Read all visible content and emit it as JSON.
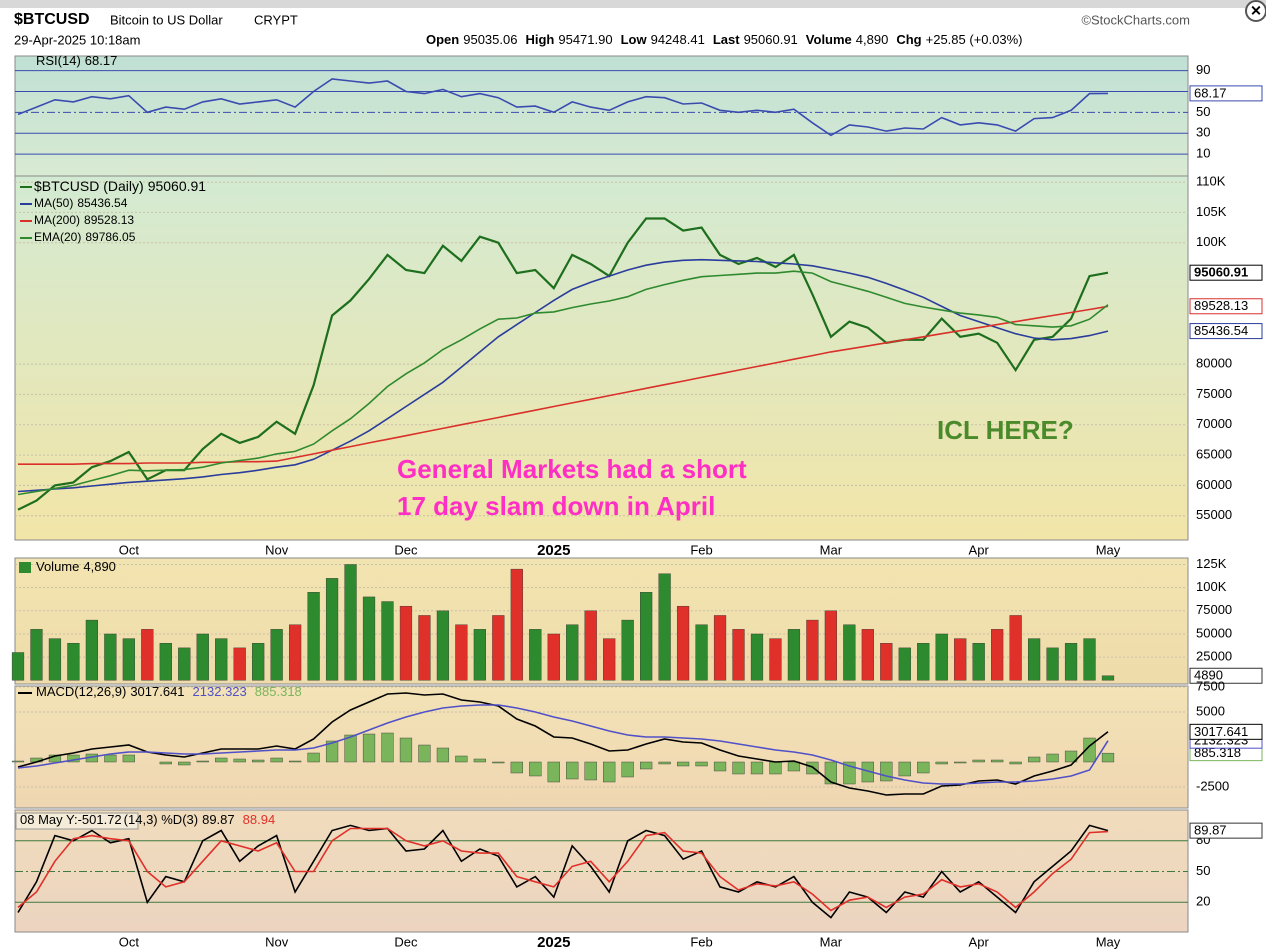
{
  "header": {
    "symbol": "$BTCUSD",
    "name": "Bitcoin to US Dollar",
    "exchange": "CRYPT",
    "date": "29-Apr-2025 10:18am",
    "source": "©StockCharts.com",
    "quote": [
      [
        "Open",
        "95035.06"
      ],
      [
        "High",
        "95471.90"
      ],
      [
        "Low",
        "94248.41"
      ],
      [
        "Last",
        "95060.91"
      ],
      [
        "Volume",
        "4,890"
      ],
      [
        "Chg",
        "+25.85 (+0.03%)"
      ]
    ]
  },
  "chart_data": [
    {
      "type": "line",
      "ylim": [
        -11,
        104
      ],
      "yticks": [
        10,
        30,
        50,
        70,
        90
      ],
      "grid": true,
      "series": [
        {
          "name": "RSI(14)",
          "color": "#3a4bb0",
          "values": [
            48,
            55,
            62,
            60,
            65,
            63,
            66,
            50,
            55,
            53,
            60,
            63,
            58,
            60,
            62,
            55,
            70,
            82,
            80,
            78,
            80,
            70,
            68,
            72,
            65,
            68,
            64,
            55,
            56,
            50,
            60,
            55,
            52,
            60,
            65,
            64,
            58,
            59,
            52,
            50,
            52,
            50,
            53,
            40,
            28,
            38,
            36,
            32,
            35,
            34,
            45,
            38,
            40,
            38,
            32,
            44,
            45,
            52,
            68,
            68.17
          ]
        }
      ]
    },
    {
      "type": "line",
      "ylim": [
        51000,
        111000
      ],
      "yticks": [
        55000,
        60000,
        65000,
        70000,
        75000,
        80000,
        {
          "value": 100000,
          "label": "100K"
        },
        {
          "value": 105000,
          "label": "105K"
        },
        {
          "value": 110000,
          "label": "110K"
        }
      ],
      "grid": true,
      "categories": [
        null,
        null,
        null,
        null,
        null,
        null,
        "Oct",
        null,
        null,
        null,
        null,
        null,
        null,
        null,
        "Nov",
        null,
        null,
        null,
        null,
        null,
        null,
        "Dec",
        null,
        null,
        null,
        null,
        null,
        null,
        null,
        "2025",
        null,
        null,
        null,
        null,
        null,
        null,
        null,
        "Feb",
        null,
        null,
        null,
        null,
        null,
        null,
        "Mar",
        null,
        null,
        null,
        null,
        null,
        null,
        null,
        "Apr",
        null,
        null,
        null,
        null,
        null,
        null,
        "May"
      ],
      "series": [
        {
          "name": "$BTCUSD (Daily)",
          "color": "#1d6e1d",
          "values": [
            56000,
            57500,
            60000,
            60500,
            63000,
            64000,
            65500,
            61000,
            62500,
            62500,
            66000,
            68500,
            67000,
            68000,
            70500,
            68500,
            76500,
            88000,
            90500,
            94000,
            98000,
            95500,
            95000,
            99500,
            97000,
            101000,
            100000,
            95000,
            95500,
            92500,
            98000,
            96500,
            94500,
            100000,
            104000,
            104000,
            102000,
            102500,
            98000,
            96500,
            97500,
            96000,
            98000,
            91500,
            84500,
            87000,
            86000,
            83500,
            84000,
            84000,
            87500,
            84500,
            85000,
            83500,
            79000,
            84000,
            84500,
            87500,
            94500,
            95060.91
          ]
        },
        {
          "name": "MA(50)",
          "color": "#2a3c9c",
          "values": [
            59000,
            59200,
            59400,
            59600,
            59900,
            60200,
            60500,
            60700,
            60900,
            61100,
            61400,
            61800,
            62100,
            62500,
            63000,
            63400,
            64300,
            65800,
            67300,
            69000,
            71000,
            73000,
            75000,
            77000,
            79500,
            82000,
            84500,
            86500,
            88500,
            90500,
            92300,
            93500,
            94500,
            95500,
            96300,
            96800,
            97100,
            97200,
            97100,
            97000,
            96900,
            96700,
            96500,
            96200,
            95600,
            95000,
            94300,
            93300,
            92200,
            91000,
            89500,
            88000,
            87000,
            86000,
            85000,
            84300,
            84000,
            84200,
            84700,
            85436.54
          ]
        },
        {
          "name": "MA(200)",
          "color": "#d9302a",
          "values": [
            63500,
            63500,
            63500,
            63500,
            63600,
            63600,
            63600,
            63700,
            63700,
            63700,
            63800,
            63800,
            63900,
            63900,
            64000,
            64600,
            65200,
            65800,
            66400,
            67000,
            67600,
            68200,
            68800,
            69400,
            70000,
            70600,
            71200,
            71800,
            72400,
            73000,
            73600,
            74200,
            74800,
            75400,
            76000,
            76600,
            77200,
            77800,
            78400,
            79000,
            79600,
            80200,
            80800,
            81400,
            82000,
            82500,
            83000,
            83500,
            84000,
            84500,
            85000,
            85500,
            86000,
            86500,
            87000,
            87500,
            88000,
            88500,
            89000,
            89528.13
          ]
        },
        {
          "name": "EMA(20)",
          "color": "#2f8a2f",
          "values": [
            58500,
            59000,
            59500,
            60000,
            60800,
            61600,
            62500,
            62400,
            62500,
            62600,
            63000,
            63700,
            64100,
            64500,
            65200,
            65600,
            66800,
            69000,
            71000,
            73500,
            76300,
            78400,
            80200,
            82400,
            84000,
            85800,
            87400,
            87600,
            88400,
            88600,
            89300,
            89900,
            90400,
            91100,
            92300,
            93100,
            93800,
            94400,
            94600,
            94800,
            95000,
            95000,
            95300,
            95000,
            93600,
            92800,
            92000,
            91000,
            90000,
            89400,
            88900,
            88400,
            88100,
            87700,
            86500,
            86300,
            86100,
            86300,
            87400,
            89786.05
          ]
        }
      ],
      "annotations": [
        "General Markets had a short",
        "17 day slam down in April",
        "ICL HERE?"
      ]
    },
    {
      "type": "bar",
      "ylim": [
        -4000,
        132000
      ],
      "yticks": [
        25000,
        50000,
        75000,
        {
          "value": 100000,
          "label": "100K"
        },
        {
          "value": 125000,
          "label": "125K"
        }
      ],
      "grid": true,
      "up_color": "#2e8a2e",
      "down_color": "#e0302a",
      "series": [
        {
          "name": "Volume",
          "values": [
            30000,
            55000,
            45000,
            40000,
            65000,
            50000,
            45000,
            55000,
            40000,
            35000,
            50000,
            45000,
            35000,
            40000,
            55000,
            60000,
            95000,
            110000,
            125000,
            90000,
            85000,
            80000,
            70000,
            75000,
            60000,
            55000,
            70000,
            120000,
            55000,
            50000,
            60000,
            75000,
            45000,
            65000,
            95000,
            115000,
            80000,
            60000,
            70000,
            55000,
            50000,
            45000,
            55000,
            65000,
            75000,
            60000,
            55000,
            40000,
            35000,
            40000,
            50000,
            45000,
            40000,
            55000,
            70000,
            45000,
            35000,
            40000,
            45000,
            4890
          ]
        }
      ]
    },
    {
      "type": "line",
      "title": "MACD(12,26,9)",
      "ylim": [
        -4600,
        7600
      ],
      "yticks": [
        -2500,
        5000,
        7500
      ],
      "grid": true,
      "series": [
        {
          "type": "bar",
          "color": "#7ab55c",
          "values": [
            100,
            400,
            700,
            700,
            800,
            700,
            700,
            0,
            -200,
            -300,
            100,
            400,
            300,
            200,
            400,
            100,
            900,
            2100,
            2700,
            2800,
            2900,
            2400,
            1700,
            1400,
            600,
            300,
            -100,
            -1100,
            -1400,
            -2000,
            -1700,
            -1800,
            -2000,
            -1500,
            -700,
            -200,
            -400,
            -400,
            -900,
            -1200,
            -1200,
            -1200,
            -900,
            -1200,
            -2200,
            -2200,
            -2000,
            -1900,
            -1400,
            -1100,
            -200,
            -100,
            200,
            200,
            -200,
            500,
            800,
            1100,
            2400,
            885.318
          ]
        },
        {
          "type": "line",
          "color": "#000000",
          "values": [
            -500,
            0,
            600,
            900,
            1300,
            1500,
            1700,
            1000,
            700,
            500,
            900,
            1300,
            1300,
            1300,
            1600,
            1300,
            2300,
            4000,
            5200,
            6000,
            6800,
            6900,
            6700,
            6800,
            6200,
            6000,
            5600,
            4300,
            3600,
            2500,
            2400,
            1800,
            1100,
            1200,
            1800,
            2300,
            2000,
            1900,
            1200,
            600,
            300,
            0,
            100,
            -500,
            -2000,
            -2600,
            -2900,
            -3300,
            -3200,
            -3200,
            -2400,
            -2300,
            -1900,
            -1800,
            -2200,
            -1400,
            -900,
            -300,
            1600,
            3017.641
          ]
        },
        {
          "type": "line",
          "color": "#5050c8",
          "values": [
            -600,
            -400,
            -100,
            200,
            500,
            800,
            1000,
            1000,
            900,
            800,
            800,
            900,
            1000,
            1100,
            1200,
            1200,
            1400,
            1900,
            2500,
            3200,
            3900,
            4500,
            5000,
            5400,
            5600,
            5700,
            5700,
            5400,
            5000,
            4500,
            4100,
            3600,
            3100,
            2700,
            2500,
            2500,
            2400,
            2300,
            2100,
            1800,
            1500,
            1200,
            1000,
            700,
            200,
            -400,
            -900,
            -1400,
            -1800,
            -2100,
            -2200,
            -2200,
            -2100,
            -2000,
            -2000,
            -1900,
            -1700,
            -1400,
            -800,
            2132.323
          ]
        }
      ]
    },
    {
      "type": "line",
      "cursor": "08 May Y:-501.72",
      "title": "(14,3) %D(3)",
      "ylim": [
        -9,
        110
      ],
      "yticks": [
        20,
        50,
        80
      ],
      "grid": true,
      "categories": [
        null,
        null,
        null,
        null,
        null,
        null,
        "Oct",
        null,
        null,
        null,
        null,
        null,
        null,
        null,
        "Nov",
        null,
        null,
        null,
        null,
        null,
        null,
        "Dec",
        null,
        null,
        null,
        null,
        null,
        null,
        null,
        "2025",
        null,
        null,
        null,
        null,
        null,
        null,
        null,
        "Feb",
        null,
        null,
        null,
        null,
        null,
        null,
        "Mar",
        null,
        null,
        null,
        null,
        null,
        null,
        null,
        "Apr",
        null,
        null,
        null,
        null,
        null,
        null,
        "May"
      ],
      "series": [
        {
          "color": "#000000",
          "values": [
            10,
            40,
            85,
            80,
            90,
            78,
            82,
            20,
            45,
            40,
            80,
            90,
            60,
            75,
            85,
            30,
            60,
            90,
            95,
            90,
            92,
            70,
            72,
            90,
            60,
            72,
            65,
            35,
            45,
            25,
            75,
            55,
            30,
            80,
            90,
            85,
            62,
            70,
            35,
            30,
            40,
            35,
            45,
            20,
            5,
            30,
            25,
            10,
            30,
            25,
            50,
            30,
            40,
            25,
            10,
            40,
            55,
            70,
            95,
            89.87
          ]
        },
        {
          "color": "#e0302a",
          "values": [
            15,
            30,
            60,
            82,
            85,
            82,
            80,
            50,
            35,
            40,
            60,
            80,
            75,
            70,
            78,
            50,
            50,
            80,
            92,
            92,
            92,
            80,
            75,
            80,
            70,
            68,
            68,
            45,
            40,
            35,
            55,
            60,
            40,
            60,
            85,
            88,
            70,
            68,
            45,
            32,
            38,
            36,
            40,
            28,
            12,
            22,
            25,
            15,
            25,
            28,
            42,
            35,
            38,
            30,
            15,
            30,
            48,
            62,
            88,
            88.94
          ]
        }
      ]
    }
  ]
}
